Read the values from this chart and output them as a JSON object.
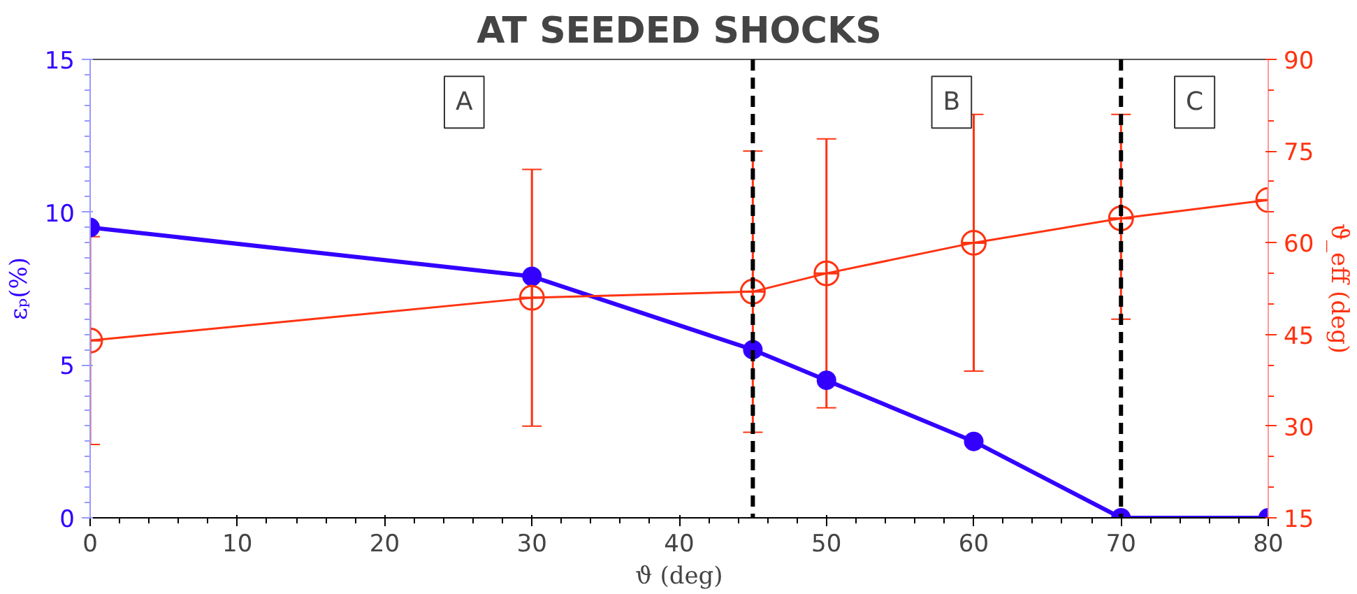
{
  "chart_data": {
    "type": "line",
    "title": "AT SEEDED SHOCKS",
    "xlabel": "ϑ (deg)",
    "ylabel": "εₚ(%)",
    "y2label": "ϑ_eff (deg)",
    "x": [
      0,
      30,
      45,
      50,
      60,
      70,
      80
    ],
    "series": [
      {
        "color": "#3300ff",
        "values": [
          9.5,
          7.9,
          5.5,
          4.5,
          2.5,
          0,
          0
        ],
        "marker": "circle"
      },
      {
        "color": "#ff3311",
        "axis": "y2",
        "values": [
          44,
          51,
          52,
          55,
          60,
          64,
          67
        ],
        "marker": "circle_open",
        "errors": [
          [
            27,
            61
          ],
          [
            30,
            72
          ],
          [
            29,
            75
          ],
          [
            33,
            77
          ],
          [
            39,
            81
          ],
          [
            47.5,
            81
          ],
          null
        ]
      }
    ],
    "xlim": [
      0,
      80
    ],
    "xticks": [
      0,
      10,
      20,
      30,
      40,
      50,
      60,
      70,
      80
    ],
    "ylim": [
      0,
      15
    ],
    "yticks": [
      0,
      5,
      10,
      15
    ],
    "y2lim": [
      15,
      90
    ],
    "y2ticks": [
      15,
      30,
      45,
      60,
      75,
      90
    ],
    "ref_lines": [
      {
        "axis": "x",
        "value": 45,
        "color": "#000000",
        "line_style": "dashed"
      },
      {
        "axis": "x",
        "value": 70,
        "color": "#000000",
        "line_style": "dashed"
      }
    ],
    "annotations": [
      {
        "text": "A",
        "x": 25.4,
        "y": 13.6
      },
      {
        "text": "B",
        "x": 58.5,
        "y": 13.6
      },
      {
        "text": "C",
        "x": 75,
        "y": 13.6
      }
    ],
    "grid": false
  }
}
